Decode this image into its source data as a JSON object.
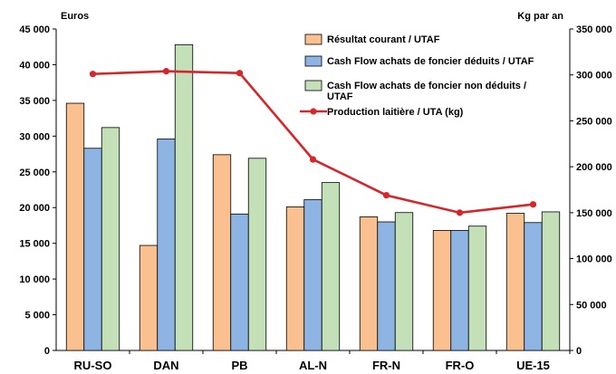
{
  "chart_data": {
    "type": "bar",
    "left_unit": "Euros",
    "right_unit": "Kg par an",
    "categories": [
      "RU-SO",
      "DAN",
      "PB",
      "AL-N",
      "FR-N",
      "FR-O",
      "UE-15"
    ],
    "left_ylim": [
      0,
      45000
    ],
    "right_ylim": [
      0,
      350000
    ],
    "left_ticks": [
      "0",
      "5 000",
      "10 000",
      "15 000",
      "20 000",
      "25 000",
      "30 000",
      "35 000",
      "40 000",
      "45 000"
    ],
    "right_ticks": [
      "0",
      "50 000",
      "100 000",
      "150 000",
      "200 000",
      "250 000",
      "300 000",
      "350 000"
    ],
    "series": [
      {
        "name": "Résultat courant / UTAF",
        "kind": "bar",
        "axis": "left",
        "color": "#fac090",
        "values": [
          34600,
          14700,
          27400,
          20100,
          18700,
          16800,
          19200
        ]
      },
      {
        "name": "Cash Flow achats de foncier déduits / UTAF",
        "kind": "bar",
        "axis": "left",
        "color": "#8db4e2",
        "values": [
          28300,
          29600,
          19100,
          21100,
          18000,
          16800,
          17900
        ]
      },
      {
        "name": "Cash Flow achats de foncier non déduits / UTAF",
        "kind": "bar",
        "axis": "left",
        "color": "#c3e0b8",
        "values": [
          31200,
          42800,
          26900,
          23500,
          19300,
          17400,
          19400
        ]
      },
      {
        "name": "Production laitière / UTA (kg)",
        "kind": "line",
        "axis": "right",
        "color": "#d7262a",
        "values": [
          301000,
          304000,
          302000,
          208000,
          169000,
          150000,
          159000
        ]
      }
    ],
    "legend_position": "top-right",
    "grid": false
  }
}
